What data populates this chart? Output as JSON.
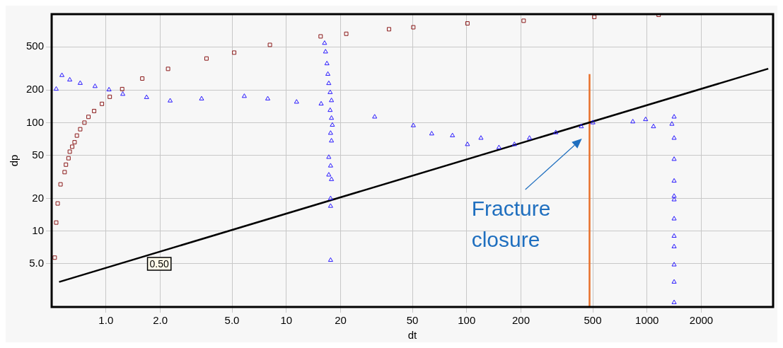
{
  "chart_data": {
    "type": "scatter",
    "xlabel": "dt",
    "ylabel": "dp",
    "log": "xy",
    "grid": true,
    "legend": false,
    "xlim": [
      0.5,
      5000
    ],
    "ylim": [
      2,
      1000
    ],
    "xticks": [
      {
        "value": 1,
        "label": "1.0"
      },
      {
        "value": 2,
        "label": "2.0"
      },
      {
        "value": 5,
        "label": "5.0"
      },
      10,
      20,
      50,
      100,
      200,
      500,
      1000,
      2000
    ],
    "yticks": [
      {
        "value": 5,
        "label": "5.0"
      },
      10,
      20,
      50,
      100,
      200,
      500
    ],
    "series": [
      {
        "marker": "square",
        "color": "#8b1a1a",
        "x": [
          0.52,
          0.53,
          0.54,
          0.56,
          0.59,
          0.6,
          0.62,
          0.63,
          0.65,
          0.67,
          0.69,
          0.72,
          0.76,
          0.8,
          0.86,
          0.95,
          1.05,
          1.23,
          1.59,
          2.21,
          3.61,
          5.14,
          8.11,
          15.5,
          21.5,
          37.1,
          50.6,
          101,
          207,
          510,
          1160
        ],
        "values": [
          5.7,
          12,
          18,
          27,
          35,
          41,
          47,
          54,
          60,
          66,
          76,
          87,
          100,
          113,
          128,
          149,
          173,
          204,
          255,
          313,
          390,
          442,
          521,
          624,
          659,
          726,
          757,
          822,
          869,
          942,
          985
        ]
      },
      {
        "marker": "triangle",
        "color": "#2a1aff",
        "x": [
          0.53,
          0.57,
          0.63,
          0.72,
          0.87,
          1.04,
          1.24,
          1.68,
          2.27,
          3.39,
          5.85,
          7.89,
          11.4,
          15.6,
          16.3,
          16.5,
          16.8,
          17.0,
          17.2,
          17.5,
          17.8,
          17.5,
          17.8,
          18.0,
          17.6,
          17.8,
          17.2,
          17.6,
          17.2,
          17.8,
          17.6,
          17.6,
          17.6,
          30.9,
          50.6,
          64,
          83.4,
          101,
          120,
          151,
          184,
          223,
          312,
          432,
          501,
          834,
          982,
          1086,
          1374,
          1413,
          1413,
          1413,
          1413,
          1413,
          1413,
          1413,
          1413,
          1413,
          1413,
          1413,
          1413
        ],
        "values": [
          204,
          273,
          248,
          231,
          216,
          201,
          183,
          171,
          159,
          166,
          175,
          166,
          155,
          149,
          540,
          450,
          350,
          280,
          230,
          190,
          160,
          130,
          110,
          95,
          80,
          68,
          48,
          40,
          33,
          30,
          20,
          17,
          5.4,
          113,
          94,
          79,
          76,
          63,
          72,
          59,
          63,
          72,
          81,
          92,
          100,
          102,
          107,
          92,
          97,
          113,
          72,
          46,
          29,
          21,
          19.5,
          13,
          9,
          7.2,
          4.9,
          3.4,
          2.2
        ]
      },
      {
        "type": "line",
        "marker": "none",
        "color": "#000000",
        "x": [
          0.55,
          4700
        ],
        "values": [
          3.4,
          314
        ]
      },
      {
        "type": "line",
        "marker": "none",
        "color": "#e8702a",
        "x": [
          480,
          480
        ],
        "values": [
          2,
          280
        ]
      }
    ],
    "annotations": [
      {
        "text": "0.50",
        "x": 2,
        "y": 5
      },
      "Fracture closure"
    ]
  }
}
